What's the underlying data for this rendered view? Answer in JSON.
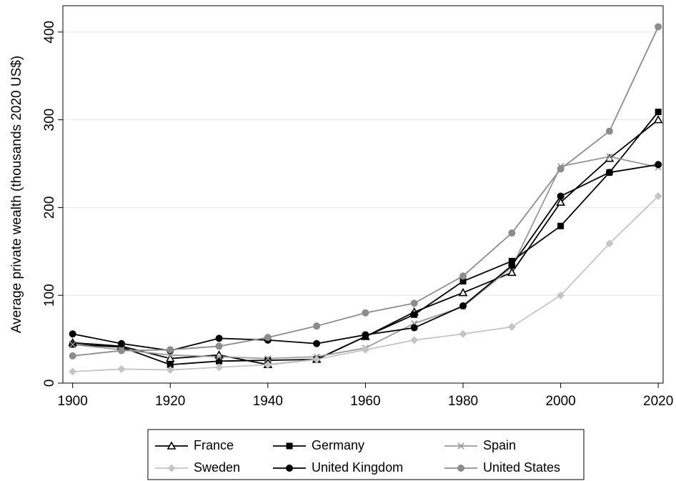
{
  "chart_data": {
    "type": "line",
    "y_label": "Average private wealth (thousands 2020 US$)",
    "x": [
      1900,
      1910,
      1920,
      1930,
      1940,
      1950,
      1960,
      1970,
      1980,
      1990,
      2000,
      2010,
      2020
    ],
    "xlim": [
      1898,
      2021
    ],
    "xticks": [
      1900,
      1920,
      1940,
      1960,
      1980,
      2000,
      2020
    ],
    "ylim": [
      0,
      430
    ],
    "yticks": [
      0,
      100,
      200,
      300,
      400
    ],
    "grid": true,
    "legend": "bottom",
    "series": [
      {
        "name": "France",
        "color": "#000000",
        "marker": "triangle-open",
        "values": [
          46,
          42,
          28,
          32,
          21,
          27,
          53,
          81,
          103,
          126,
          206,
          256,
          300
        ]
      },
      {
        "name": "Germany",
        "color": "#000000",
        "marker": "square",
        "values": [
          44,
          41,
          21,
          25,
          26,
          27,
          53,
          78,
          116,
          139,
          179,
          240,
          309
        ]
      },
      {
        "name": "Spain",
        "color": "#999999",
        "marker": "x",
        "values": [
          44,
          38,
          32,
          30,
          28,
          30,
          40,
          68,
          87,
          132,
          247,
          258,
          246
        ]
      },
      {
        "name": "Sweden",
        "color": "#c4c4c4",
        "marker": "diamond",
        "values": [
          13,
          16,
          15,
          18,
          21,
          27,
          38,
          49,
          56,
          64,
          100,
          159,
          213
        ]
      },
      {
        "name": "United Kingdom",
        "color": "#000000",
        "marker": "circle",
        "values": [
          56,
          45,
          37,
          51,
          49,
          45,
          55,
          63,
          88,
          134,
          213,
          240,
          249
        ]
      },
      {
        "name": "United States",
        "color": "#8c8c8c",
        "marker": "circle",
        "values": [
          31,
          37,
          38,
          42,
          52,
          65,
          80,
          91,
          122,
          171,
          244,
          287,
          406
        ]
      }
    ]
  }
}
